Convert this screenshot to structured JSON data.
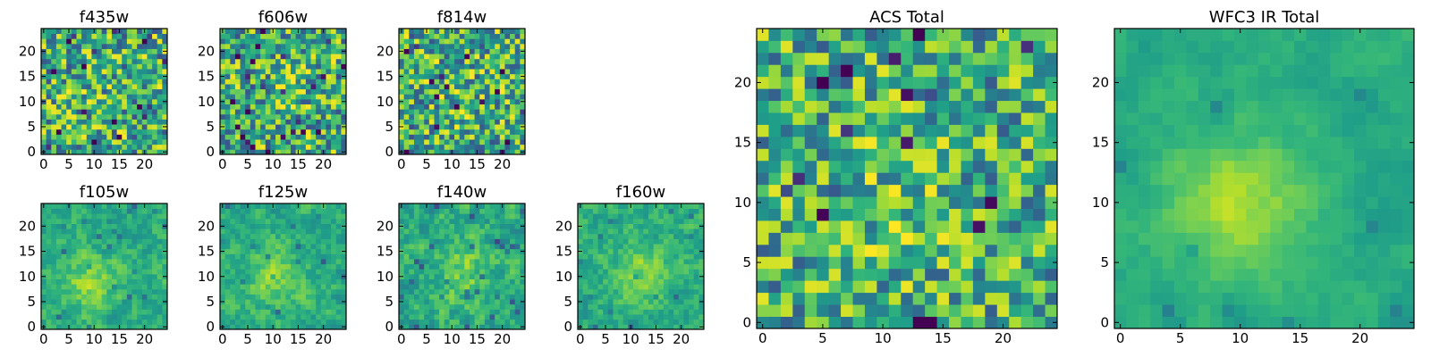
{
  "chart_data": [
    {
      "type": "heatmap",
      "title": "f435w",
      "xticks": [
        0,
        5,
        10,
        15,
        20
      ],
      "yticks": [
        0,
        5,
        10,
        15,
        20
      ],
      "xlim": [
        -0.5,
        24.5
      ],
      "ylim": [
        -0.5,
        24.5
      ],
      "grid_size": [
        25,
        25
      ],
      "colormap": "viridis"
    },
    {
      "type": "heatmap",
      "title": "f606w",
      "xticks": [
        0,
        5,
        10,
        15,
        20
      ],
      "yticks": [
        0,
        5,
        10,
        15,
        20
      ],
      "xlim": [
        -0.5,
        24.5
      ],
      "ylim": [
        -0.5,
        24.5
      ],
      "grid_size": [
        25,
        25
      ],
      "colormap": "viridis"
    },
    {
      "type": "heatmap",
      "title": "f814w",
      "xticks": [
        0,
        5,
        10,
        15,
        20
      ],
      "yticks": [
        0,
        5,
        10,
        15,
        20
      ],
      "xlim": [
        -0.5,
        24.5
      ],
      "ylim": [
        -0.5,
        24.5
      ],
      "grid_size": [
        25,
        25
      ],
      "colormap": "viridis"
    },
    {
      "type": "heatmap",
      "title": "f105w",
      "xticks": [
        0,
        5,
        10,
        15,
        20
      ],
      "yticks": [
        0,
        5,
        10,
        15,
        20
      ],
      "xlim": [
        -0.5,
        24.5
      ],
      "ylim": [
        -0.5,
        24.5
      ],
      "grid_size": [
        25,
        25
      ],
      "colormap": "viridis"
    },
    {
      "type": "heatmap",
      "title": "f125w",
      "xticks": [
        0,
        5,
        10,
        15,
        20
      ],
      "yticks": [
        0,
        5,
        10,
        15,
        20
      ],
      "xlim": [
        -0.5,
        24.5
      ],
      "ylim": [
        -0.5,
        24.5
      ],
      "grid_size": [
        25,
        25
      ],
      "colormap": "viridis"
    },
    {
      "type": "heatmap",
      "title": "f140w",
      "xticks": [
        0,
        5,
        10,
        15,
        20
      ],
      "yticks": [
        0,
        5,
        10,
        15,
        20
      ],
      "xlim": [
        -0.5,
        24.5
      ],
      "ylim": [
        -0.5,
        24.5
      ],
      "grid_size": [
        25,
        25
      ],
      "colormap": "viridis"
    },
    {
      "type": "heatmap",
      "title": "f160w",
      "xticks": [
        0,
        5,
        10,
        15,
        20
      ],
      "yticks": [
        0,
        5,
        10,
        15,
        20
      ],
      "xlim": [
        -0.5,
        24.5
      ],
      "ylim": [
        -0.5,
        24.5
      ],
      "grid_size": [
        25,
        25
      ],
      "colormap": "viridis"
    },
    {
      "type": "heatmap",
      "title": "ACS Total",
      "xticks": [
        0,
        5,
        10,
        15,
        20
      ],
      "yticks": [
        0,
        5,
        10,
        15,
        20
      ],
      "xlim": [
        -0.5,
        24.5
      ],
      "ylim": [
        -0.5,
        24.5
      ],
      "grid_size": [
        25,
        25
      ],
      "colormap": "viridis"
    },
    {
      "type": "heatmap",
      "title": "WFC3 IR Total",
      "xticks": [
        0,
        5,
        10,
        15,
        20
      ],
      "yticks": [
        0,
        5,
        10,
        15,
        20
      ],
      "xlim": [
        -0.5,
        24.5
      ],
      "ylim": [
        -0.5,
        24.5
      ],
      "grid_size": [
        25,
        25
      ],
      "colormap": "viridis"
    }
  ]
}
